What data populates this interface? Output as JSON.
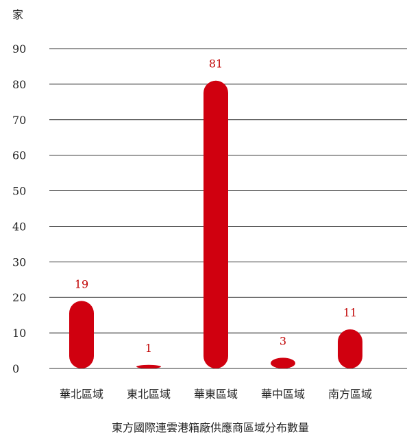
{
  "chart_data": {
    "type": "bar",
    "title": "東方國際連雲港箱廠供應商區域分布數量",
    "ylabel": "家",
    "xlabel": "",
    "categories": [
      "華北區域",
      "東北區域",
      "華東區域",
      "華中區域",
      "南方區域"
    ],
    "values": [
      19,
      1,
      81,
      3,
      11
    ],
    "ylim": [
      0,
      90
    ],
    "yticks": [
      0,
      10,
      20,
      30,
      40,
      50,
      60,
      70,
      80,
      90
    ],
    "grid": true,
    "bar_color": "#d0000f",
    "label_color": "#c00000"
  }
}
